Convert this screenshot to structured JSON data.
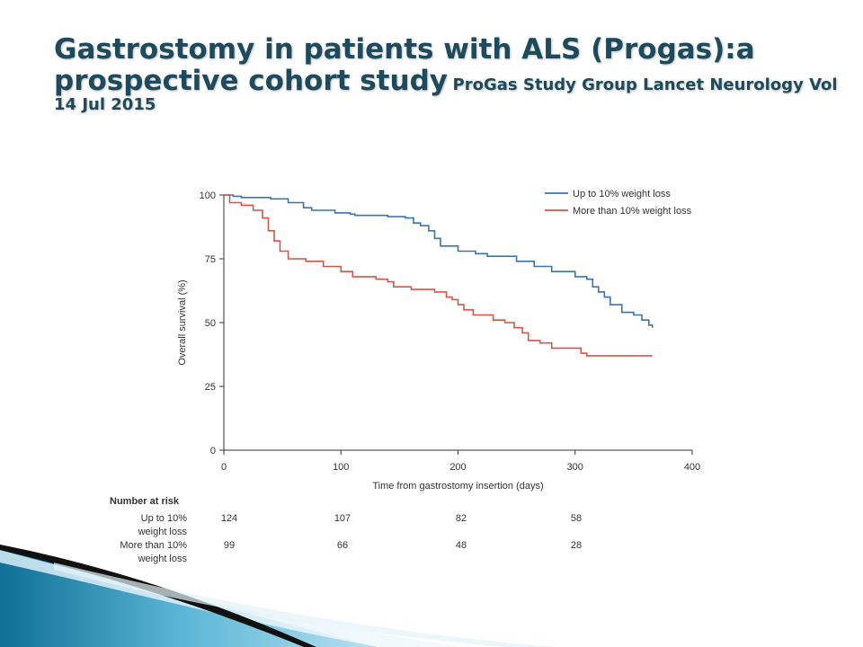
{
  "slide": {
    "title_main": "Gastrostomy in patients with ALS (Progas):a prospective cohort study",
    "title_sub": "ProGas Study Group Lancet Neurology Vol 14 Jul 2015"
  },
  "chart_data": {
    "type": "line",
    "xlabel": "Time from gastrostomy insertion (days)",
    "ylabel": "Overall survival (%)",
    "xlim": [
      0,
      400
    ],
    "ylim": [
      0,
      100
    ],
    "xticks": [
      "0",
      "100",
      "200",
      "300",
      "400"
    ],
    "yticks": [
      "0",
      "25",
      "50",
      "75",
      "100"
    ],
    "grid": false,
    "legend_position": "top-right",
    "series": [
      {
        "name": "Up to 10% weight loss",
        "color": "#3a74b4",
        "points": [
          [
            0,
            100
          ],
          [
            8,
            99.5
          ],
          [
            15,
            99
          ],
          [
            40,
            98.5
          ],
          [
            55,
            97
          ],
          [
            68,
            95
          ],
          [
            75,
            94
          ],
          [
            95,
            93
          ],
          [
            108,
            92.5
          ],
          [
            112,
            92
          ],
          [
            140,
            91.5
          ],
          [
            155,
            91
          ],
          [
            162,
            89
          ],
          [
            168,
            88
          ],
          [
            175,
            86
          ],
          [
            180,
            83
          ],
          [
            185,
            80
          ],
          [
            200,
            78
          ],
          [
            215,
            77
          ],
          [
            225,
            76
          ],
          [
            250,
            74
          ],
          [
            265,
            72
          ],
          [
            280,
            70
          ],
          [
            300,
            68
          ],
          [
            310,
            67
          ],
          [
            315,
            64
          ],
          [
            320,
            62
          ],
          [
            325,
            60
          ],
          [
            330,
            57
          ],
          [
            340,
            54
          ],
          [
            350,
            53
          ],
          [
            357,
            51
          ],
          [
            363,
            49
          ],
          [
            366,
            48
          ]
        ]
      },
      {
        "name": "More than 10% weight loss",
        "color": "#d75448",
        "points": [
          [
            0,
            100
          ],
          [
            5,
            97
          ],
          [
            15,
            96
          ],
          [
            25,
            94
          ],
          [
            33,
            91
          ],
          [
            38,
            86
          ],
          [
            43,
            82
          ],
          [
            48,
            78
          ],
          [
            55,
            75
          ],
          [
            70,
            74
          ],
          [
            85,
            72
          ],
          [
            100,
            70
          ],
          [
            110,
            68
          ],
          [
            130,
            67
          ],
          [
            140,
            66
          ],
          [
            145,
            64
          ],
          [
            160,
            63
          ],
          [
            180,
            62
          ],
          [
            190,
            60
          ],
          [
            195,
            59
          ],
          [
            200,
            57
          ],
          [
            205,
            55
          ],
          [
            213,
            53
          ],
          [
            230,
            51
          ],
          [
            240,
            50
          ],
          [
            248,
            48
          ],
          [
            255,
            46
          ],
          [
            260,
            43
          ],
          [
            270,
            42
          ],
          [
            280,
            40
          ],
          [
            300,
            40
          ],
          [
            305,
            38
          ],
          [
            310,
            37
          ],
          [
            366,
            37
          ]
        ]
      }
    ],
    "risk_table": {
      "header": "Number at risk",
      "rows": [
        {
          "label_line1": "Up to 10%",
          "label_line2": "weight loss",
          "values": [
            "124",
            "107",
            "82",
            "58"
          ]
        },
        {
          "label_line1": "More than 10%",
          "label_line2": "weight loss",
          "values": [
            "99",
            "66",
            "48",
            "28"
          ]
        }
      ]
    }
  }
}
